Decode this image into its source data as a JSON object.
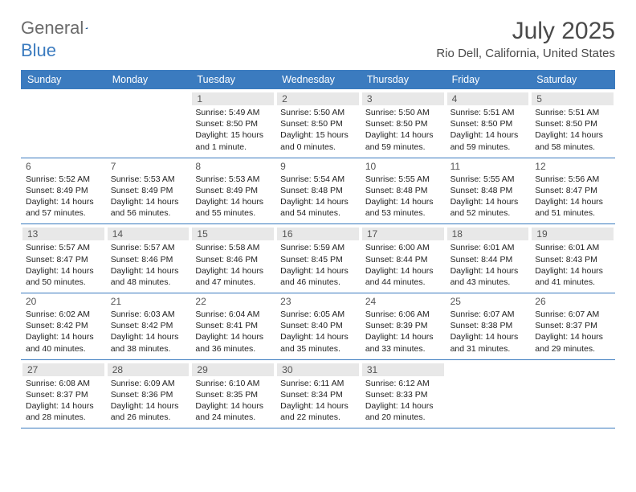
{
  "logo": {
    "text1": "General",
    "text2": "Blue"
  },
  "title": "July 2025",
  "location": "Rio Dell, California, United States",
  "colors": {
    "header_bg": "#3b7bbf",
    "header_fg": "#ffffff",
    "rule": "#3b7bbf",
    "shade": "#e8e8e8"
  },
  "daynames": [
    "Sunday",
    "Monday",
    "Tuesday",
    "Wednesday",
    "Thursday",
    "Friday",
    "Saturday"
  ],
  "weeks": [
    [
      null,
      null,
      {
        "n": "1",
        "sr": "5:49 AM",
        "ss": "8:50 PM",
        "dl": "15 hours and 1 minute."
      },
      {
        "n": "2",
        "sr": "5:50 AM",
        "ss": "8:50 PM",
        "dl": "15 hours and 0 minutes."
      },
      {
        "n": "3",
        "sr": "5:50 AM",
        "ss": "8:50 PM",
        "dl": "14 hours and 59 minutes."
      },
      {
        "n": "4",
        "sr": "5:51 AM",
        "ss": "8:50 PM",
        "dl": "14 hours and 59 minutes."
      },
      {
        "n": "5",
        "sr": "5:51 AM",
        "ss": "8:50 PM",
        "dl": "14 hours and 58 minutes."
      }
    ],
    [
      {
        "n": "6",
        "sr": "5:52 AM",
        "ss": "8:49 PM",
        "dl": "14 hours and 57 minutes."
      },
      {
        "n": "7",
        "sr": "5:53 AM",
        "ss": "8:49 PM",
        "dl": "14 hours and 56 minutes."
      },
      {
        "n": "8",
        "sr": "5:53 AM",
        "ss": "8:49 PM",
        "dl": "14 hours and 55 minutes."
      },
      {
        "n": "9",
        "sr": "5:54 AM",
        "ss": "8:48 PM",
        "dl": "14 hours and 54 minutes."
      },
      {
        "n": "10",
        "sr": "5:55 AM",
        "ss": "8:48 PM",
        "dl": "14 hours and 53 minutes."
      },
      {
        "n": "11",
        "sr": "5:55 AM",
        "ss": "8:48 PM",
        "dl": "14 hours and 52 minutes."
      },
      {
        "n": "12",
        "sr": "5:56 AM",
        "ss": "8:47 PM",
        "dl": "14 hours and 51 minutes."
      }
    ],
    [
      {
        "n": "13",
        "sr": "5:57 AM",
        "ss": "8:47 PM",
        "dl": "14 hours and 50 minutes."
      },
      {
        "n": "14",
        "sr": "5:57 AM",
        "ss": "8:46 PM",
        "dl": "14 hours and 48 minutes."
      },
      {
        "n": "15",
        "sr": "5:58 AM",
        "ss": "8:46 PM",
        "dl": "14 hours and 47 minutes."
      },
      {
        "n": "16",
        "sr": "5:59 AM",
        "ss": "8:45 PM",
        "dl": "14 hours and 46 minutes."
      },
      {
        "n": "17",
        "sr": "6:00 AM",
        "ss": "8:44 PM",
        "dl": "14 hours and 44 minutes."
      },
      {
        "n": "18",
        "sr": "6:01 AM",
        "ss": "8:44 PM",
        "dl": "14 hours and 43 minutes."
      },
      {
        "n": "19",
        "sr": "6:01 AM",
        "ss": "8:43 PM",
        "dl": "14 hours and 41 minutes."
      }
    ],
    [
      {
        "n": "20",
        "sr": "6:02 AM",
        "ss": "8:42 PM",
        "dl": "14 hours and 40 minutes."
      },
      {
        "n": "21",
        "sr": "6:03 AM",
        "ss": "8:42 PM",
        "dl": "14 hours and 38 minutes."
      },
      {
        "n": "22",
        "sr": "6:04 AM",
        "ss": "8:41 PM",
        "dl": "14 hours and 36 minutes."
      },
      {
        "n": "23",
        "sr": "6:05 AM",
        "ss": "8:40 PM",
        "dl": "14 hours and 35 minutes."
      },
      {
        "n": "24",
        "sr": "6:06 AM",
        "ss": "8:39 PM",
        "dl": "14 hours and 33 minutes."
      },
      {
        "n": "25",
        "sr": "6:07 AM",
        "ss": "8:38 PM",
        "dl": "14 hours and 31 minutes."
      },
      {
        "n": "26",
        "sr": "6:07 AM",
        "ss": "8:37 PM",
        "dl": "14 hours and 29 minutes."
      }
    ],
    [
      {
        "n": "27",
        "sr": "6:08 AM",
        "ss": "8:37 PM",
        "dl": "14 hours and 28 minutes."
      },
      {
        "n": "28",
        "sr": "6:09 AM",
        "ss": "8:36 PM",
        "dl": "14 hours and 26 minutes."
      },
      {
        "n": "29",
        "sr": "6:10 AM",
        "ss": "8:35 PM",
        "dl": "14 hours and 24 minutes."
      },
      {
        "n": "30",
        "sr": "6:11 AM",
        "ss": "8:34 PM",
        "dl": "14 hours and 22 minutes."
      },
      {
        "n": "31",
        "sr": "6:12 AM",
        "ss": "8:33 PM",
        "dl": "14 hours and 20 minutes."
      },
      null,
      null
    ]
  ],
  "labels": {
    "sunrise": "Sunrise: ",
    "sunset": "Sunset: ",
    "daylight": "Daylight: "
  },
  "shaded_rows": [
    0,
    2,
    4
  ]
}
